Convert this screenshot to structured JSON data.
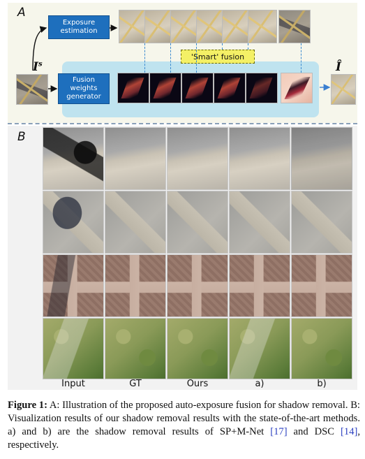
{
  "panel_a": {
    "label": "A",
    "input_symbol": "I",
    "input_superscript": "s",
    "output_symbol": "Î",
    "exposure_box": {
      "line1": "Exposure",
      "line2": "estimation"
    },
    "weights_box": {
      "line1": "Fusion",
      "line2": "weights",
      "line3": "generator"
    },
    "smart_fusion_label": "'Smart' fusion"
  },
  "panel_b": {
    "label": "B",
    "columns": [
      "Input",
      "GT",
      "Ours",
      "a)",
      "b)"
    ]
  },
  "caption": {
    "prefix": "Figure 1:",
    "text_1": " A: Illustration of the proposed auto-exposure fusion for shadow removal. B: Visualization results of our shadow removal results with the state-of-the-art methods. a) and b) are the shadow removal results of SP+M-Net ",
    "ref_1": "[17]",
    "text_2": " and DSC ",
    "ref_2": "[14]",
    "text_3": ", respectively."
  },
  "colors": {
    "panel_a_bg": "#f6f6eb",
    "panel_b_bg": "#f2f2f2",
    "box_blue": "#1e6fbd",
    "fusion_bg": "#bfe3ef",
    "smart_yellow": "#f4f066",
    "citation_blue": "#2a3fc0"
  }
}
